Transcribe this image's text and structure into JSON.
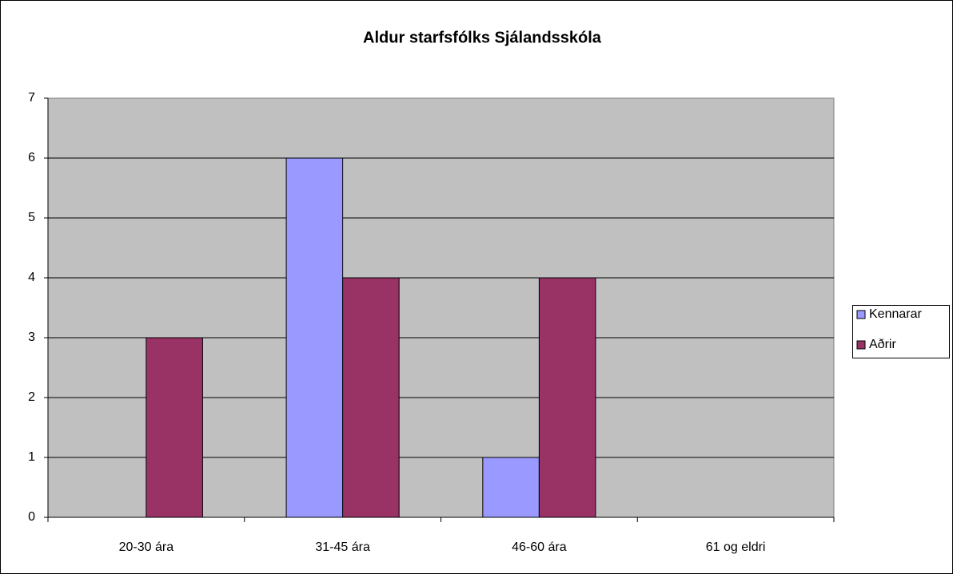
{
  "chart_data": {
    "type": "bar",
    "title": "Aldur starfsfólks Sjálandsskóla",
    "categories": [
      "20-30 ára",
      "31-45 ára",
      "46-60 ára",
      "61 og eldri"
    ],
    "series": [
      {
        "name": "Kennarar",
        "color": "#9999ff",
        "values": [
          0,
          6,
          1,
          0
        ]
      },
      {
        "name": "Aðrir",
        "color": "#993366",
        "values": [
          3,
          4,
          4,
          0
        ]
      }
    ],
    "ylim": [
      0,
      7
    ],
    "yticks": [
      0,
      1,
      2,
      3,
      4,
      5,
      6,
      7
    ],
    "grid": true,
    "legend": "right"
  }
}
